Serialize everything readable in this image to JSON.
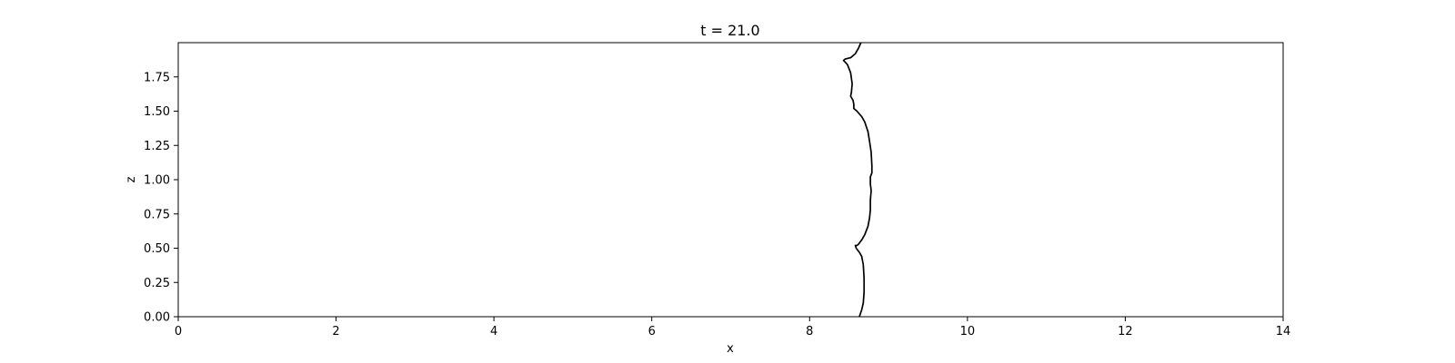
{
  "chart_data": {
    "type": "line",
    "title": "t = 21.0",
    "xlabel": "x",
    "ylabel": "z",
    "xlim": [
      0,
      14
    ],
    "ylim": [
      0,
      2.0
    ],
    "x_ticks": [
      "0",
      "2",
      "4",
      "6",
      "8",
      "10",
      "12",
      "14"
    ],
    "y_ticks": [
      "0.00",
      "0.25",
      "0.50",
      "0.75",
      "1.00",
      "1.25",
      "1.50",
      "1.75"
    ],
    "grid": false,
    "line_color": "#000000",
    "series": [
      {
        "points": [
          [
            8.63,
            0.0
          ],
          [
            8.66,
            0.05
          ],
          [
            8.68,
            0.1
          ],
          [
            8.69,
            0.18
          ],
          [
            8.69,
            0.28
          ],
          [
            8.68,
            0.38
          ],
          [
            8.66,
            0.44
          ],
          [
            8.63,
            0.47
          ],
          [
            8.59,
            0.5
          ],
          [
            8.58,
            0.52
          ],
          [
            8.6,
            0.52
          ],
          [
            8.62,
            0.53
          ],
          [
            8.66,
            0.56
          ],
          [
            8.7,
            0.6
          ],
          [
            8.74,
            0.66
          ],
          [
            8.76,
            0.72
          ],
          [
            8.77,
            0.78
          ],
          [
            8.77,
            0.85
          ],
          [
            8.78,
            0.92
          ],
          [
            8.77,
            0.97
          ],
          [
            8.77,
            1.0
          ],
          [
            8.77,
            1.02
          ],
          [
            8.79,
            1.05
          ],
          [
            8.79,
            1.1
          ],
          [
            8.78,
            1.2
          ],
          [
            8.76,
            1.28
          ],
          [
            8.74,
            1.35
          ],
          [
            8.7,
            1.42
          ],
          [
            8.66,
            1.46
          ],
          [
            8.6,
            1.5
          ],
          [
            8.56,
            1.52
          ],
          [
            8.56,
            1.55
          ],
          [
            8.55,
            1.58
          ],
          [
            8.52,
            1.61
          ],
          [
            8.53,
            1.64
          ],
          [
            8.54,
            1.7
          ],
          [
            8.52,
            1.78
          ],
          [
            8.48,
            1.84
          ],
          [
            8.43,
            1.87
          ],
          [
            8.45,
            1.88
          ],
          [
            8.52,
            1.89
          ],
          [
            8.58,
            1.92
          ],
          [
            8.62,
            1.96
          ],
          [
            8.65,
            2.0
          ]
        ]
      }
    ]
  }
}
